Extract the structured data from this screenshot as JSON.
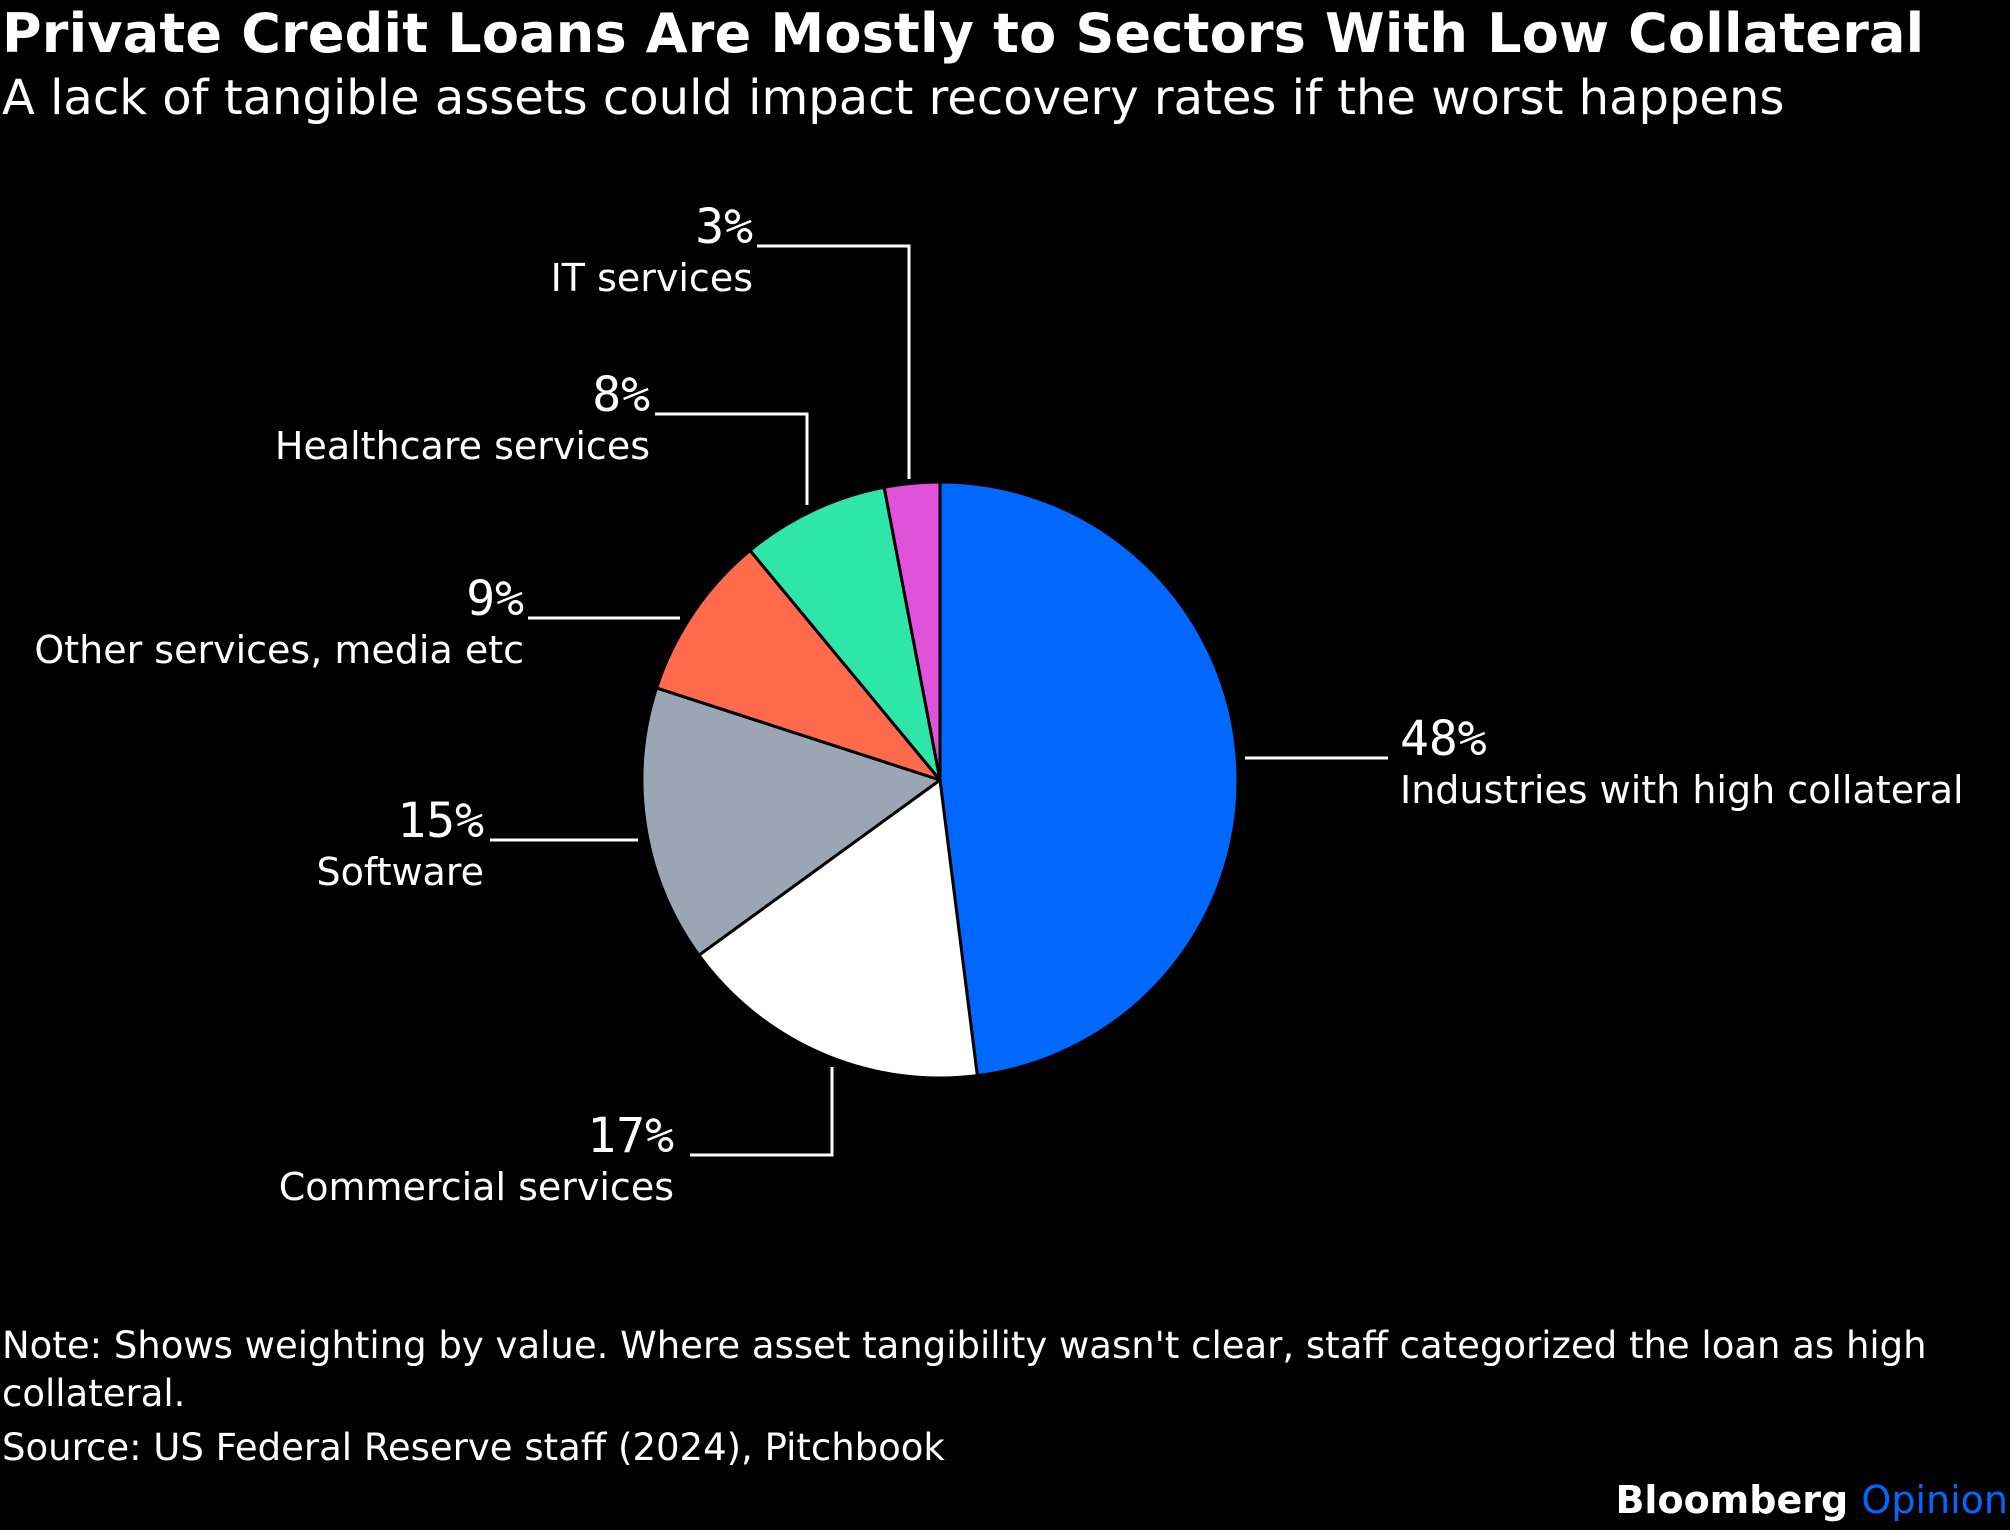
{
  "header": {
    "title": "Private Credit Loans Are Mostly to Sectors With Low Collateral",
    "subtitle": "A lack of tangible assets could impact recovery rates if the worst happens"
  },
  "chart_data": {
    "type": "pie",
    "title": "Private Credit Loans Are Mostly to Sectors With Low Collateral",
    "subtitle": "A lack of tangible assets could impact recovery rates if the worst happens",
    "slices": [
      {
        "label": "Industries with high collateral",
        "value": 48,
        "value_label": "48%",
        "color": "#0068ff"
      },
      {
        "label": "Commercial services",
        "value": 17,
        "value_label": "17%",
        "color": "#ffffff"
      },
      {
        "label": "Software",
        "value": 15,
        "value_label": "15%",
        "color": "#9aa6b4"
      },
      {
        "label": "Other services, media etc",
        "value": 9,
        "value_label": "9%",
        "color": "#ff6a4d"
      },
      {
        "label": "Healthcare services",
        "value": 8,
        "value_label": "8%",
        "color": "#2ee6a8"
      },
      {
        "label": "IT services",
        "value": 3,
        "value_label": "3%",
        "color": "#e052d9"
      }
    ]
  },
  "footer": {
    "note": "Note: Shows weighting by value. Where asset tangibility wasn't clear, staff categorized the loan as high collateral.",
    "source": "Source: US Federal Reserve staff (2024), Pitchbook",
    "brand_primary": "Bloomberg",
    "brand_secondary": "Opinion"
  }
}
